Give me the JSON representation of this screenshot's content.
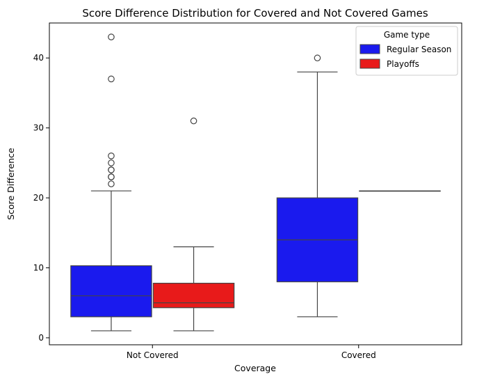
{
  "chart_data": {
    "type": "box",
    "title": "Score Difference Distribution for Covered and Not Covered Games",
    "xlabel": "Coverage",
    "ylabel": "Score Difference",
    "categories": [
      "Not Covered",
      "Covered"
    ],
    "ylim": [
      -1,
      45
    ],
    "yticks": [
      0,
      10,
      20,
      30,
      40
    ],
    "grid": false,
    "legend": {
      "title": "Game type",
      "placement": "top-right"
    },
    "series": [
      {
        "name": "Regular Season",
        "color": "#1a1aee",
        "boxes": [
          {
            "category": "Not Covered",
            "min": 1,
            "q1": 3,
            "median": 6,
            "q3": 10.3,
            "max": 21,
            "outliers": [
              22,
              23,
              23,
              24,
              24,
              25,
              26,
              37,
              43
            ]
          },
          {
            "category": "Covered",
            "min": 3,
            "q1": 8,
            "median": 14,
            "q3": 20,
            "max": 38,
            "outliers": [
              40
            ]
          }
        ]
      },
      {
        "name": "Playoffs",
        "color": "#e81a1a",
        "boxes": [
          {
            "category": "Not Covered",
            "min": 1,
            "q1": 4.3,
            "median": 5,
            "q3": 7.8,
            "max": 13,
            "outliers": [
              31
            ]
          },
          {
            "category": "Covered",
            "min": 21,
            "q1": 21,
            "median": 21,
            "q3": 21,
            "max": 21,
            "outliers": []
          }
        ]
      }
    ]
  }
}
